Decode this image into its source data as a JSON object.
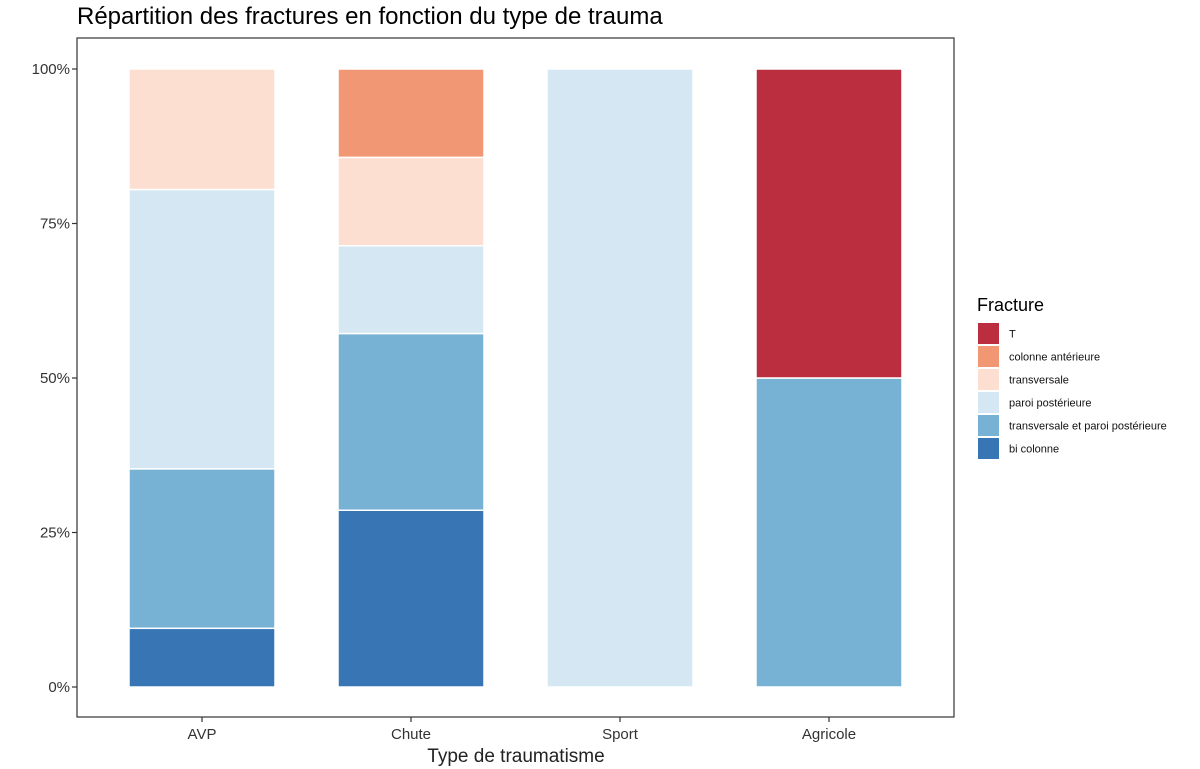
{
  "chart_data": {
    "type": "bar",
    "stacked": true,
    "percent": true,
    "title": "Répartition des fractures en fonction du type de trauma",
    "xlabel": "Type de traumatisme",
    "ylabel": "",
    "categories": [
      "AVP",
      "Chute",
      "Sport",
      "Agricole"
    ],
    "ylim": [
      0,
      1
    ],
    "yticks": [
      {
        "value": 0,
        "label": "0%"
      },
      {
        "value": 0.25,
        "label": "25%"
      },
      {
        "value": 0.5,
        "label": "50%"
      },
      {
        "value": 0.75,
        "label": "75%"
      },
      {
        "value": 1,
        "label": "100%"
      }
    ],
    "grid": false,
    "legend": {
      "title": "Fracture",
      "position": "right"
    },
    "series": [
      {
        "name": "bi colonne",
        "color": "#3775B4",
        "values": [
          0.095,
          0.286,
          0,
          0
        ]
      },
      {
        "name": "transversale et paroi postérieure",
        "color": "#77B1D4",
        "values": [
          0.258,
          0.286,
          0,
          0.5
        ]
      },
      {
        "name": "paroi postérieure",
        "color": "#D5E7F2",
        "values": [
          0.452,
          0.142,
          1,
          0
        ]
      },
      {
        "name": "transversale",
        "color": "#FDDFD1",
        "values": [
          0.195,
          0.143,
          0,
          0
        ]
      },
      {
        "name": "colonne antérieure",
        "color": "#F29774",
        "values": [
          0,
          0.143,
          0,
          0
        ]
      },
      {
        "name": "T",
        "color": "#BB2E40",
        "values": [
          0,
          0,
          0,
          0.5
        ]
      }
    ],
    "legend_order": [
      "T",
      "colonne antérieure",
      "transversale",
      "paroi postérieure",
      "transversale et paroi postérieure",
      "bi colonne"
    ]
  }
}
